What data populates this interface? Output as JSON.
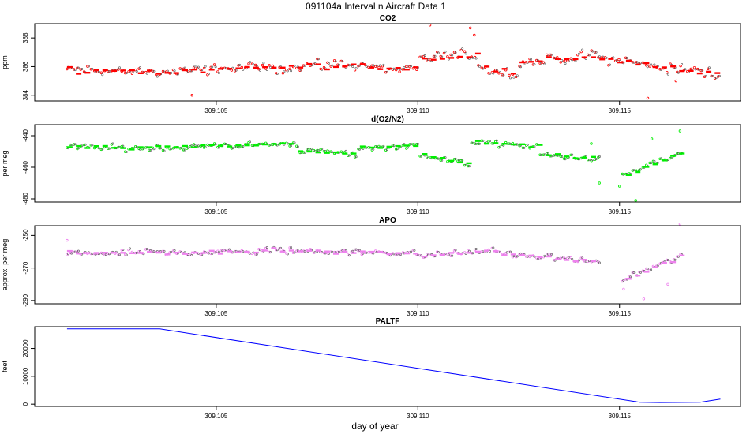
{
  "figure_title": "091104a   Interval n Aircraft Data 1",
  "xlabel": "day of year",
  "chart_data": [
    {
      "type": "scatter",
      "title": "CO2",
      "ylabel": "ppm",
      "color": "#ff0000",
      "xlim": [
        309.1005,
        309.118
      ],
      "ylim": [
        383.6,
        389.0
      ],
      "yticks": [
        384,
        386,
        388
      ],
      "xticks": [
        309.105,
        309.11,
        309.115
      ],
      "xtick_labels": [
        "309.105",
        "309.110",
        "309.115"
      ],
      "gaps": [],
      "x_start": 309.1013,
      "x_end": 309.1175,
      "sample_step": 8.5e-05,
      "segments": [
        {
          "x": [
            309.1013,
            309.104
          ],
          "y": [
            385.8,
            385.6
          ]
        },
        {
          "x": [
            309.104,
            309.108
          ],
          "y": [
            385.7,
            386.1
          ]
        },
        {
          "x": [
            309.108,
            309.11
          ],
          "y": [
            386.2,
            385.8
          ]
        },
        {
          "x": [
            309.11,
            309.1115
          ],
          "y": [
            386.6,
            386.8
          ]
        },
        {
          "x": [
            309.1115,
            309.1125
          ],
          "y": [
            386.0,
            385.4
          ]
        },
        {
          "x": [
            309.1125,
            309.1145
          ],
          "y": [
            386.2,
            386.8
          ]
        },
        {
          "x": [
            309.1145,
            309.116
          ],
          "y": [
            386.6,
            386.0
          ]
        },
        {
          "x": [
            309.116,
            309.1175
          ],
          "y": [
            386.0,
            385.4
          ]
        }
      ],
      "noise": 0.55,
      "outliers": [
        [
          309.1103,
          388.9
        ],
        [
          309.1113,
          388.7
        ],
        [
          309.1114,
          388.2
        ],
        [
          309.1157,
          383.8
        ],
        [
          309.1044,
          384.0
        ],
        [
          309.1164,
          385.0
        ]
      ]
    },
    {
      "type": "scatter",
      "title": "d(O2/N2)",
      "ylabel": "per meg",
      "color": "#00ee00",
      "xlim": [
        309.1005,
        309.118
      ],
      "ylim": [
        -482,
        -433
      ],
      "yticks": [
        -480,
        -460,
        -440
      ],
      "xticks": [
        309.105,
        309.11,
        309.115
      ],
      "xtick_labels": [
        "309.105",
        "309.110",
        "309.115"
      ],
      "gaps": [
        [
          309.1145,
          309.115
        ],
        [
          309.1166,
          309.118
        ]
      ],
      "x_start": 309.1013,
      "x_end": 309.1166,
      "sample_step": 8.5e-05,
      "segments": [
        {
          "x": [
            309.1013,
            309.103
          ],
          "y": [
            -447,
            -448
          ]
        },
        {
          "x": [
            309.103,
            309.107
          ],
          "y": [
            -448,
            -445
          ]
        },
        {
          "x": [
            309.107,
            309.1085
          ],
          "y": [
            -449,
            -452
          ]
        },
        {
          "x": [
            309.1085,
            309.11
          ],
          "y": [
            -448,
            -446
          ]
        },
        {
          "x": [
            309.11,
            309.1113
          ],
          "y": [
            -452,
            -458
          ]
        },
        {
          "x": [
            309.1113,
            309.113
          ],
          "y": [
            -444,
            -447
          ]
        },
        {
          "x": [
            309.113,
            309.1145
          ],
          "y": [
            -452,
            -455
          ]
        },
        {
          "x": [
            309.115,
            309.1166
          ],
          "y": [
            -466,
            -450
          ]
        }
      ],
      "noise": 2.6,
      "outliers": [
        [
          309.115,
          -472
        ],
        [
          309.1158,
          -442
        ],
        [
          309.1165,
          -437
        ],
        [
          309.1154,
          -481
        ],
        [
          309.1145,
          -470
        ],
        [
          309.1143,
          -445
        ]
      ]
    },
    {
      "type": "scatter",
      "title": "APO",
      "ylabel": "approx. per meg",
      "color": "#ee82ee",
      "xlim": [
        309.1005,
        309.118
      ],
      "ylim": [
        -292,
        -244
      ],
      "yticks": [
        -290,
        -270,
        -250
      ],
      "xticks": [
        309.105,
        309.11,
        309.115
      ],
      "xtick_labels": [
        "309.105",
        "309.110",
        "309.115"
      ],
      "gaps": [
        [
          309.1145,
          309.115
        ],
        [
          309.1166,
          309.118
        ]
      ],
      "x_start": 309.1013,
      "x_end": 309.1166,
      "sample_step": 8.5e-05,
      "segments": [
        {
          "x": [
            309.1013,
            309.106
          ],
          "y": [
            -261,
            -260
          ]
        },
        {
          "x": [
            309.106,
            309.11
          ],
          "y": [
            -259,
            -261
          ]
        },
        {
          "x": [
            309.11,
            309.112
          ],
          "y": [
            -263,
            -259
          ]
        },
        {
          "x": [
            309.112,
            309.1145
          ],
          "y": [
            -261,
            -266
          ]
        },
        {
          "x": [
            309.115,
            309.1166
          ],
          "y": [
            -278,
            -262
          ]
        }
      ],
      "noise": 2.8,
      "outliers": [
        [
          309.1165,
          -243
        ],
        [
          309.1156,
          -289
        ],
        [
          309.1151,
          -283
        ],
        [
          309.1162,
          -280
        ],
        [
          309.1013,
          -253
        ]
      ]
    },
    {
      "type": "line",
      "title": "PALTF",
      "ylabel": "feet",
      "color": "#0000ff",
      "xlim": [
        309.1005,
        309.118
      ],
      "ylim": [
        -800,
        27800
      ],
      "yticks": [
        0,
        10000,
        20000
      ],
      "xticks": [
        309.105,
        309.11,
        309.115
      ],
      "xtick_labels": [
        "309.105",
        "309.110",
        "309.115"
      ],
      "x": [
        309.1013,
        309.1036,
        309.1155,
        309.116,
        309.117,
        309.1175
      ],
      "y": [
        27000,
        27000,
        700,
        600,
        700,
        1800
      ]
    }
  ]
}
